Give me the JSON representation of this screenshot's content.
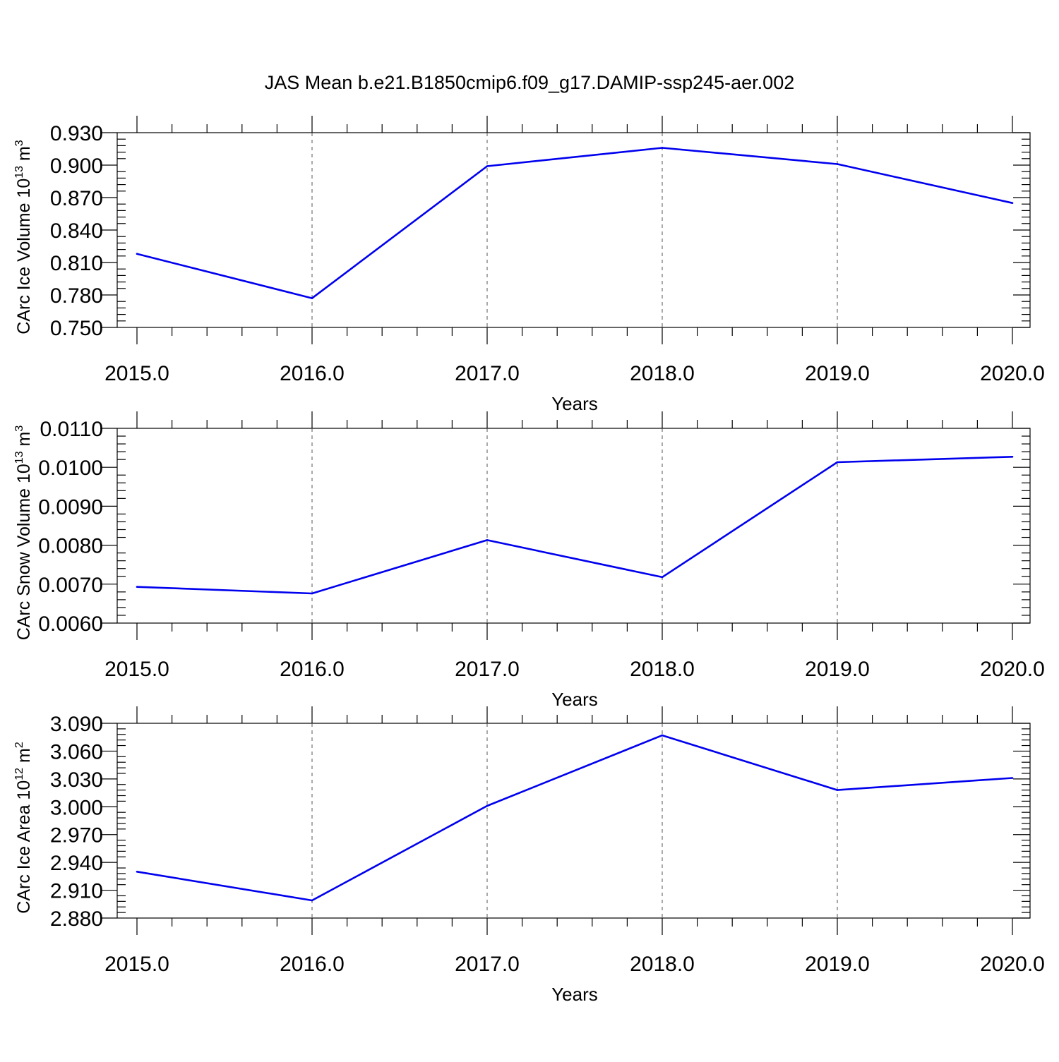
{
  "figure": {
    "title": "JAS Mean b.e21.B1850cmip6.f09_g17.DAMIP-ssp245-aer.002"
  },
  "chart_data": [
    {
      "type": "line",
      "title": "",
      "xlabel": "Years",
      "ylabel": "CArc Ice Volume 10",
      "ylabel_exp": "13",
      "ylabel_unit": " m",
      "ylabel_unit_exp": "3",
      "x": [
        2015,
        2016,
        2017,
        2018,
        2019,
        2020
      ],
      "xlim": [
        2015,
        2020
      ],
      "x_tick_labels": [
        "2015.0",
        "2016.0",
        "2017.0",
        "2018.0",
        "2019.0",
        "2020.0"
      ],
      "ylim": [
        0.75,
        0.93
      ],
      "y_ticks": [
        0.75,
        0.78,
        0.81,
        0.84,
        0.87,
        0.9,
        0.93
      ],
      "y_tick_labels": [
        "0.750",
        "0.780",
        "0.810",
        "0.840",
        "0.870",
        "0.900",
        "0.930"
      ],
      "grid": "vertical dashed at major x ticks",
      "series": [
        {
          "color": "#0000ee",
          "values": [
            0.818,
            0.777,
            0.899,
            0.916,
            0.901,
            0.865
          ]
        }
      ]
    },
    {
      "type": "line",
      "title": "",
      "xlabel": "Years",
      "ylabel": "CArc Snow Volume 10",
      "ylabel_exp": "13",
      "ylabel_unit": " m",
      "ylabel_unit_exp": "3",
      "x": [
        2015,
        2016,
        2017,
        2018,
        2019,
        2020
      ],
      "xlim": [
        2015,
        2020
      ],
      "x_tick_labels": [
        "2015.0",
        "2016.0",
        "2017.0",
        "2018.0",
        "2019.0",
        "2020.0"
      ],
      "ylim": [
        0.006,
        0.011
      ],
      "y_ticks": [
        0.006,
        0.007,
        0.008,
        0.009,
        0.01,
        0.011
      ],
      "y_tick_labels": [
        "0.0060",
        "0.0070",
        "0.0080",
        "0.0090",
        "0.0100",
        "0.0110"
      ],
      "grid": "vertical dashed at major x ticks",
      "series": [
        {
          "color": "#0000ee",
          "values": [
            0.00693,
            0.00676,
            0.00813,
            0.00718,
            0.01013,
            0.01027
          ]
        }
      ]
    },
    {
      "type": "line",
      "title": "",
      "xlabel": "Years",
      "ylabel": "CArc Ice Area 10",
      "ylabel_exp": "12",
      "ylabel_unit": " m",
      "ylabel_unit_exp": "2",
      "x": [
        2015,
        2016,
        2017,
        2018,
        2019,
        2020
      ],
      "xlim": [
        2015,
        2020
      ],
      "x_tick_labels": [
        "2015.0",
        "2016.0",
        "2017.0",
        "2018.0",
        "2019.0",
        "2020.0"
      ],
      "ylim": [
        2.88,
        3.09
      ],
      "y_ticks": [
        2.88,
        2.91,
        2.94,
        2.97,
        3.0,
        3.03,
        3.06,
        3.09
      ],
      "y_tick_labels": [
        "2.880",
        "2.910",
        "2.940",
        "2.970",
        "3.000",
        "3.030",
        "3.060",
        "3.090"
      ],
      "grid": "vertical dashed at major x ticks",
      "series": [
        {
          "color": "#0000ee",
          "values": [
            2.93,
            2.899,
            3.001,
            3.077,
            3.018,
            3.031
          ]
        }
      ]
    }
  ]
}
